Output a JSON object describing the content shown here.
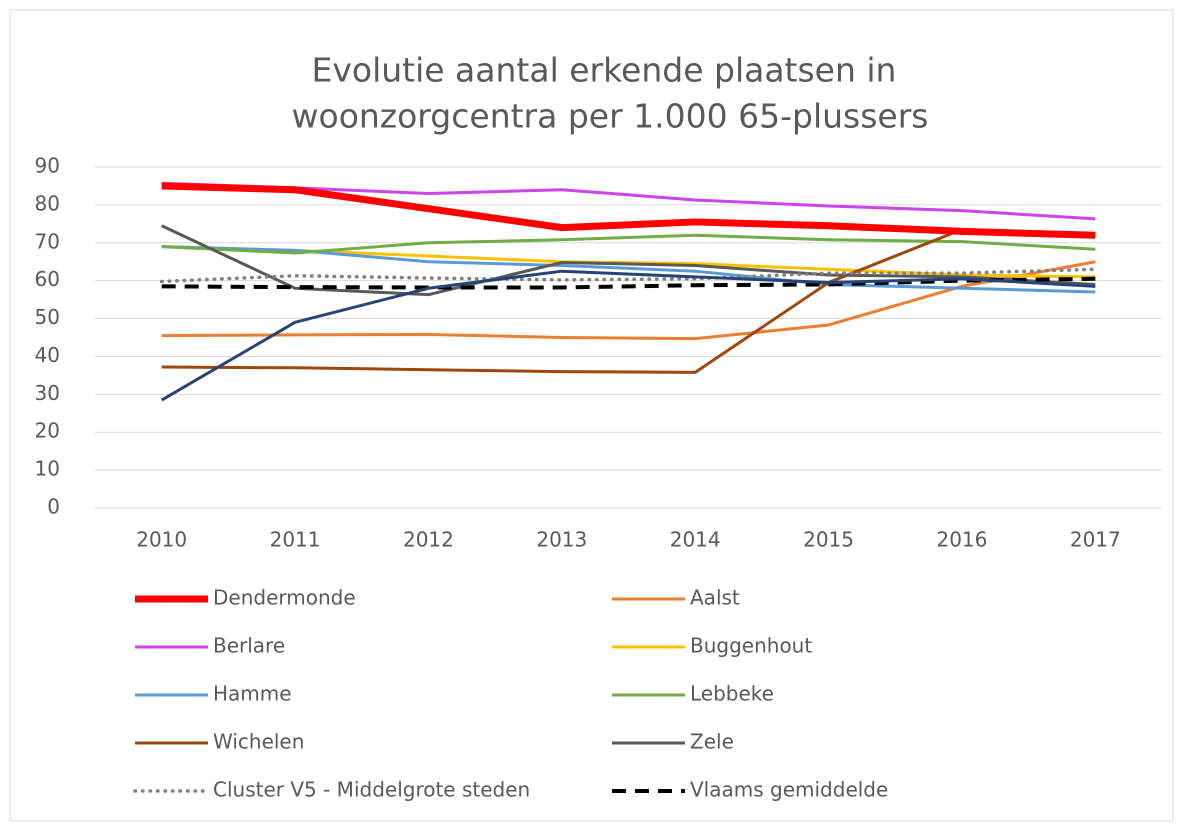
{
  "chart_data": {
    "type": "line",
    "title": [
      "Evolutie aantal erkende plaatsen in",
      "woonzorgcentra per 1.000 65-plussers"
    ],
    "categories": [
      "2010",
      "2011",
      "2012",
      "2013",
      "2014",
      "2015",
      "2016",
      "2017"
    ],
    "ylim": [
      0,
      90
    ],
    "yticks": [
      0,
      10,
      20,
      30,
      40,
      50,
      60,
      70,
      80,
      90
    ],
    "grid": true,
    "legend": "bottom",
    "series": [
      {
        "name": "Dendermonde",
        "color": "#ff0000",
        "style": "thick",
        "values": [
          85,
          84,
          79,
          74,
          75.5,
          74.5,
          73,
          72
        ]
      },
      {
        "name": "Aalst",
        "color": "#ed7d31",
        "style": "solid",
        "values": [
          45.5,
          45.7,
          45.8,
          45,
          44.7,
          48.3,
          58.5,
          65
        ]
      },
      {
        "name": "Berlare",
        "color": "#cc44ee",
        "style": "solid",
        "values": [
          85.7,
          84.5,
          83,
          84,
          81.3,
          79.7,
          78.5,
          76.3
        ]
      },
      {
        "name": "Buggenhout",
        "color": "#ffc000",
        "style": "solid",
        "values": [
          69,
          68,
          66.5,
          65,
          64.5,
          63,
          61.5,
          61
        ]
      },
      {
        "name": "Hamme",
        "color": "#5b9bd5",
        "style": "solid",
        "values": [
          69,
          68,
          65,
          64,
          62.5,
          59,
          58,
          57
        ]
      },
      {
        "name": "Lebbeke",
        "color": "#70ad47",
        "style": "solid",
        "values": [
          69,
          67.3,
          70,
          70.8,
          72,
          70.8,
          70.3,
          68.3
        ]
      },
      {
        "name": "Wichelen",
        "color": "#9e480e",
        "style": "solid",
        "values": [
          37.2,
          37,
          36.5,
          36,
          35.8,
          59.5,
          73.5,
          72
        ]
      },
      {
        "name": "Zele",
        "color": "#595959",
        "style": "solid",
        "values": [
          74.5,
          58,
          56.3,
          64.8,
          64,
          61.5,
          61,
          59
        ]
      },
      {
        "name": "Cluster V5 - Middelgrote steden",
        "color": "#808080",
        "style": "dotted",
        "values": [
          59.8,
          61.3,
          60.7,
          60.2,
          60.5,
          62,
          62,
          63
        ]
      },
      {
        "name": "Vlaams gemiddelde",
        "color": "#000000",
        "style": "dashed",
        "values": [
          58.5,
          58.3,
          58.2,
          58.2,
          58.8,
          59,
          60,
          60.5
        ]
      },
      {
        "color": "#264478",
        "style": "solid",
        "values": [
          28.5,
          49,
          58,
          62.5,
          61,
          59.5,
          60.5,
          58.5
        ]
      }
    ]
  }
}
